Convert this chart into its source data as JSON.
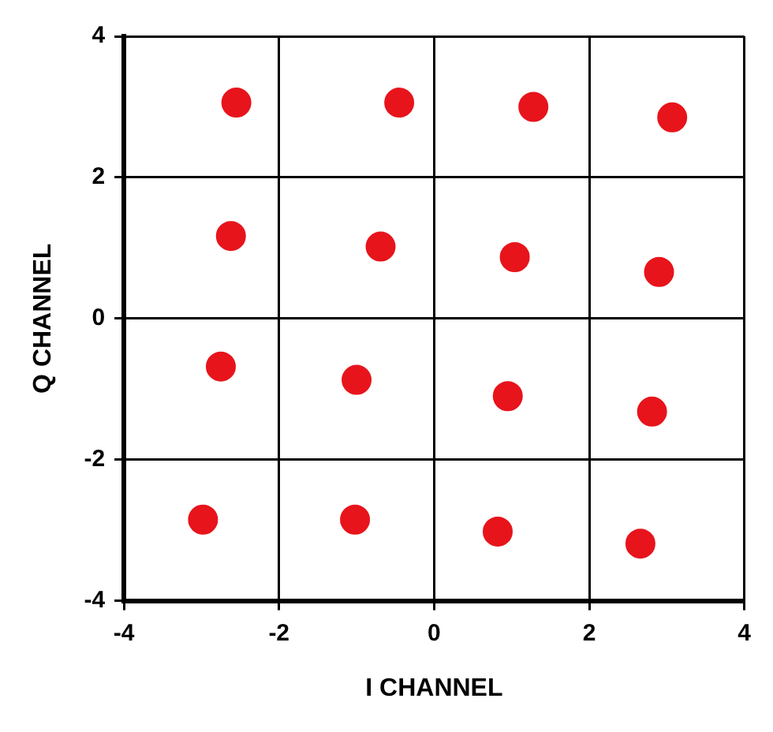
{
  "chart_data": {
    "type": "scatter",
    "xlabel": "I CHANNEL",
    "ylabel": "Q CHANNEL",
    "x": [
      -2.55,
      -0.45,
      1.28,
      3.07,
      -2.62,
      -0.69,
      1.04,
      2.9,
      -2.75,
      -1.0,
      0.95,
      2.81,
      -2.98,
      -1.02,
      0.82,
      2.66
    ],
    "values": [
      3.06,
      3.06,
      3.0,
      2.85,
      1.17,
      1.02,
      0.87,
      0.66,
      -0.68,
      -0.87,
      -1.1,
      -1.32,
      -2.85,
      -2.85,
      -3.02,
      -3.19
    ],
    "color": "#e8141c",
    "marker": "circle",
    "xlim": [
      -4,
      4
    ],
    "ylim": [
      -4,
      4
    ],
    "xticks": [
      -4,
      -2,
      0,
      2,
      4
    ],
    "yticks": [
      -4,
      -2,
      0,
      2,
      4
    ],
    "grid": true,
    "legend": false
  }
}
